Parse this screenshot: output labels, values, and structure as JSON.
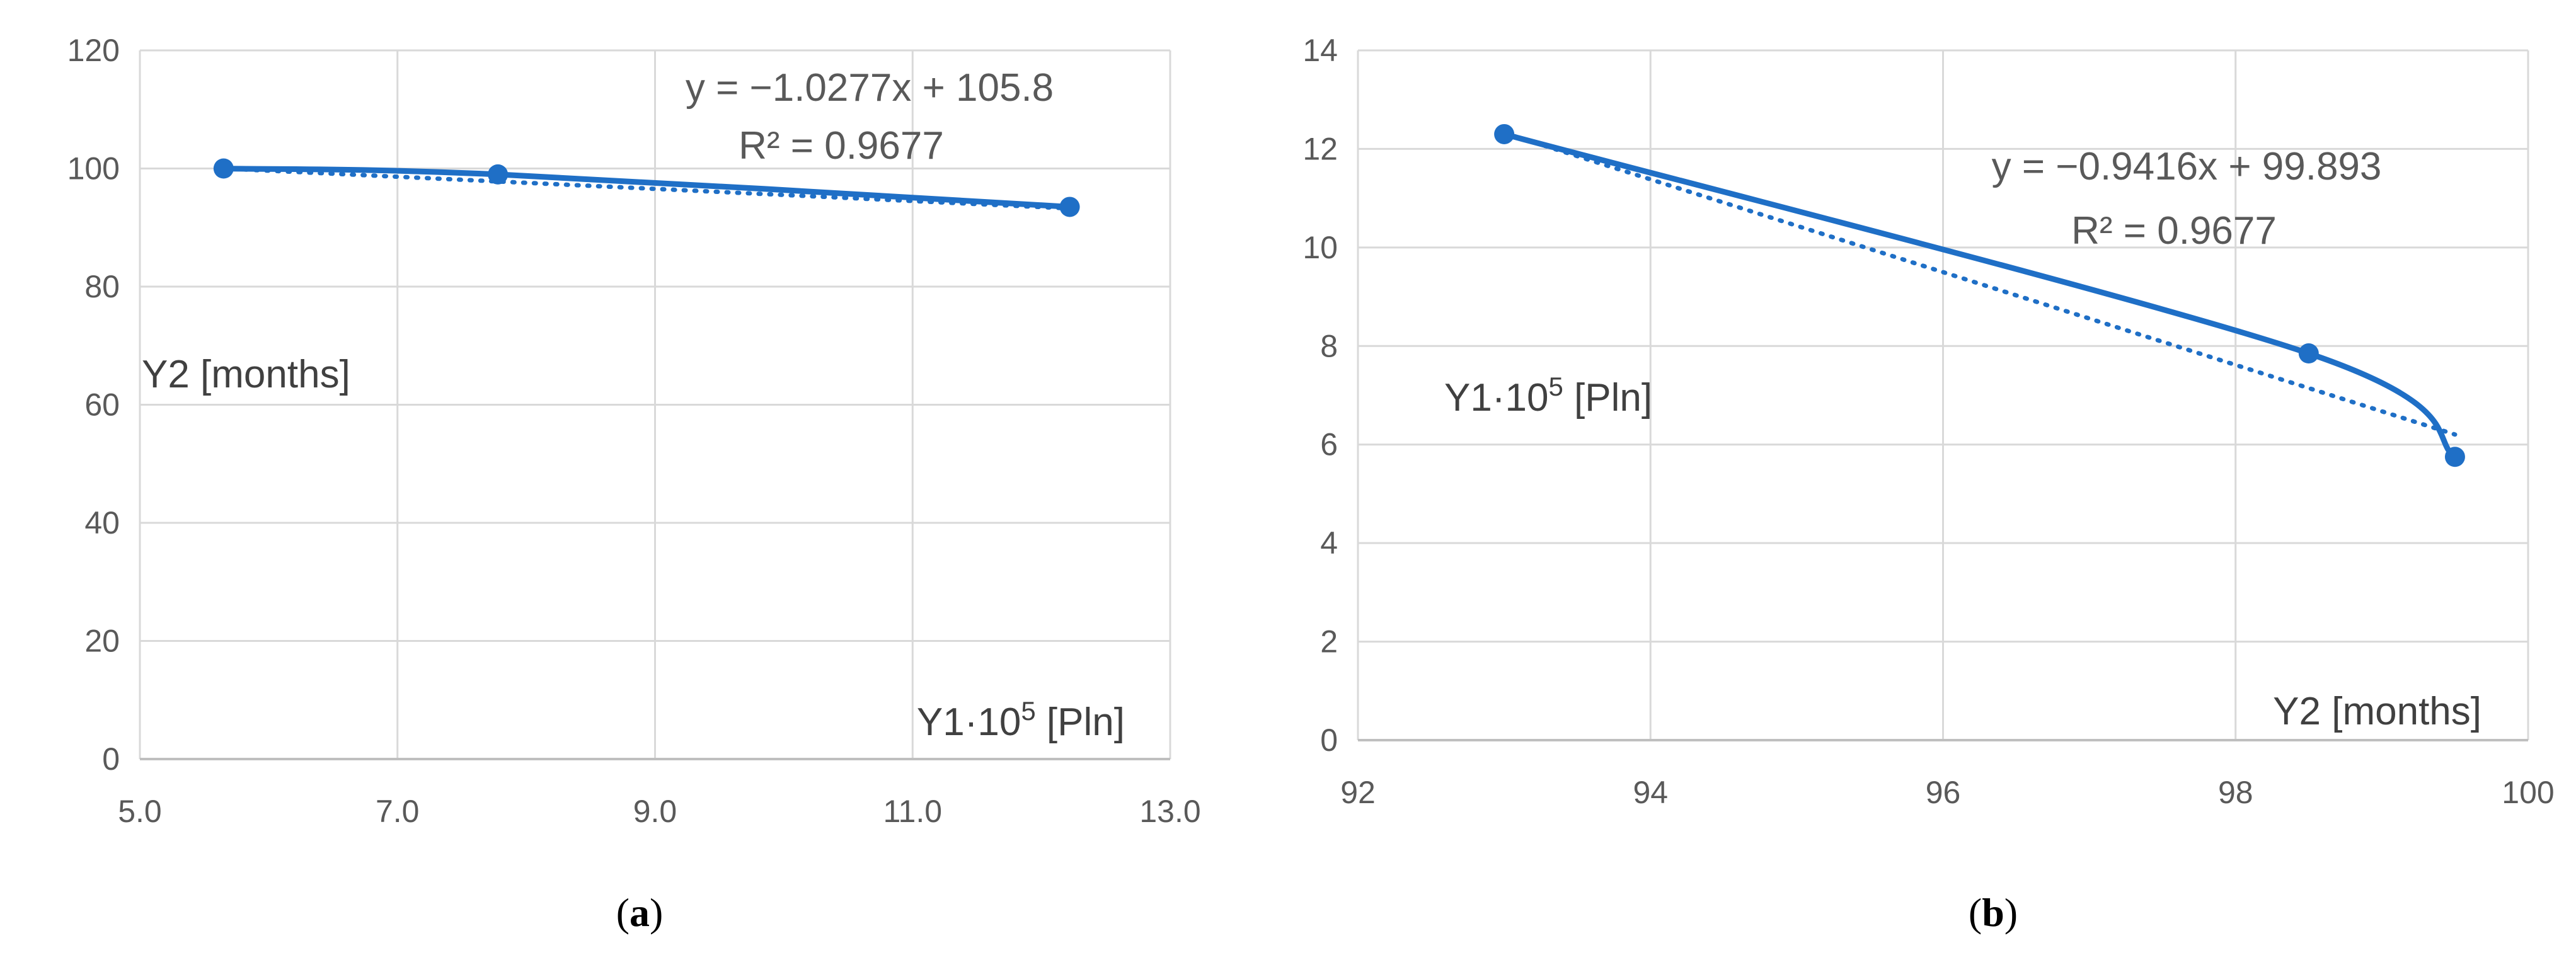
{
  "colors": {
    "series": "#1f6fc6",
    "grid": "#d9d9d9",
    "axis": "#bfbfbf",
    "text": "#595959"
  },
  "chart_data": [
    {
      "type": "scatter",
      "caption": {
        "open": "(",
        "letter": "a",
        "close": ")"
      },
      "xlim": [
        5.0,
        13.0
      ],
      "ylim": [
        0,
        120
      ],
      "xticks": [
        5.0,
        7.0,
        9.0,
        11.0,
        13.0
      ],
      "xtick_labels": [
        "5.0",
        "7.0",
        "9.0",
        "11.0",
        "13.0"
      ],
      "yticks": [
        0,
        20,
        40,
        60,
        80,
        100,
        120
      ],
      "ytick_labels": [
        "0",
        "20",
        "40",
        "60",
        "80",
        "100",
        "120"
      ],
      "grid": true,
      "ylabel": "Y2 [months]",
      "xlabel": {
        "base": "Y1·10",
        "sup": "5",
        "tail": " [Pln]"
      },
      "series": [
        {
          "x": [
            5.65,
            7.78,
            12.22
          ],
          "y": [
            100,
            99,
            93.5
          ],
          "smoothed": true
        }
      ],
      "trendline": {
        "type": "linear",
        "slope": -1.0277,
        "intercept": 105.8,
        "equation": "y = −1.0277x + 105.8",
        "r2_label": "R² = 0.9677"
      }
    },
    {
      "type": "scatter",
      "caption": {
        "open": "(",
        "letter": "b",
        "close": ")"
      },
      "xlim": [
        92,
        100
      ],
      "ylim": [
        0,
        14
      ],
      "xticks": [
        92,
        94,
        96,
        98,
        100
      ],
      "xtick_labels": [
        "92",
        "94",
        "96",
        "98",
        "100"
      ],
      "yticks": [
        0,
        2,
        4,
        6,
        8,
        10,
        12,
        14
      ],
      "ytick_labels": [
        "0",
        "2",
        "4",
        "6",
        "8",
        "10",
        "12",
        "14"
      ],
      "grid": true,
      "ylabel": {
        "base": "Y1·10",
        "sup": "5",
        "tail": " [Pln]"
      },
      "xlabel": "Y2 [months]",
      "series": [
        {
          "x": [
            93.0,
            98.5,
            99.5
          ],
          "y": [
            12.3,
            7.85,
            5.75
          ],
          "smoothed": true
        }
      ],
      "trendline": {
        "type": "linear",
        "slope": -0.9416,
        "intercept": 99.893,
        "equation": "y = −0.9416x + 99.893",
        "r2_label": "R² = 0.9677"
      }
    }
  ]
}
